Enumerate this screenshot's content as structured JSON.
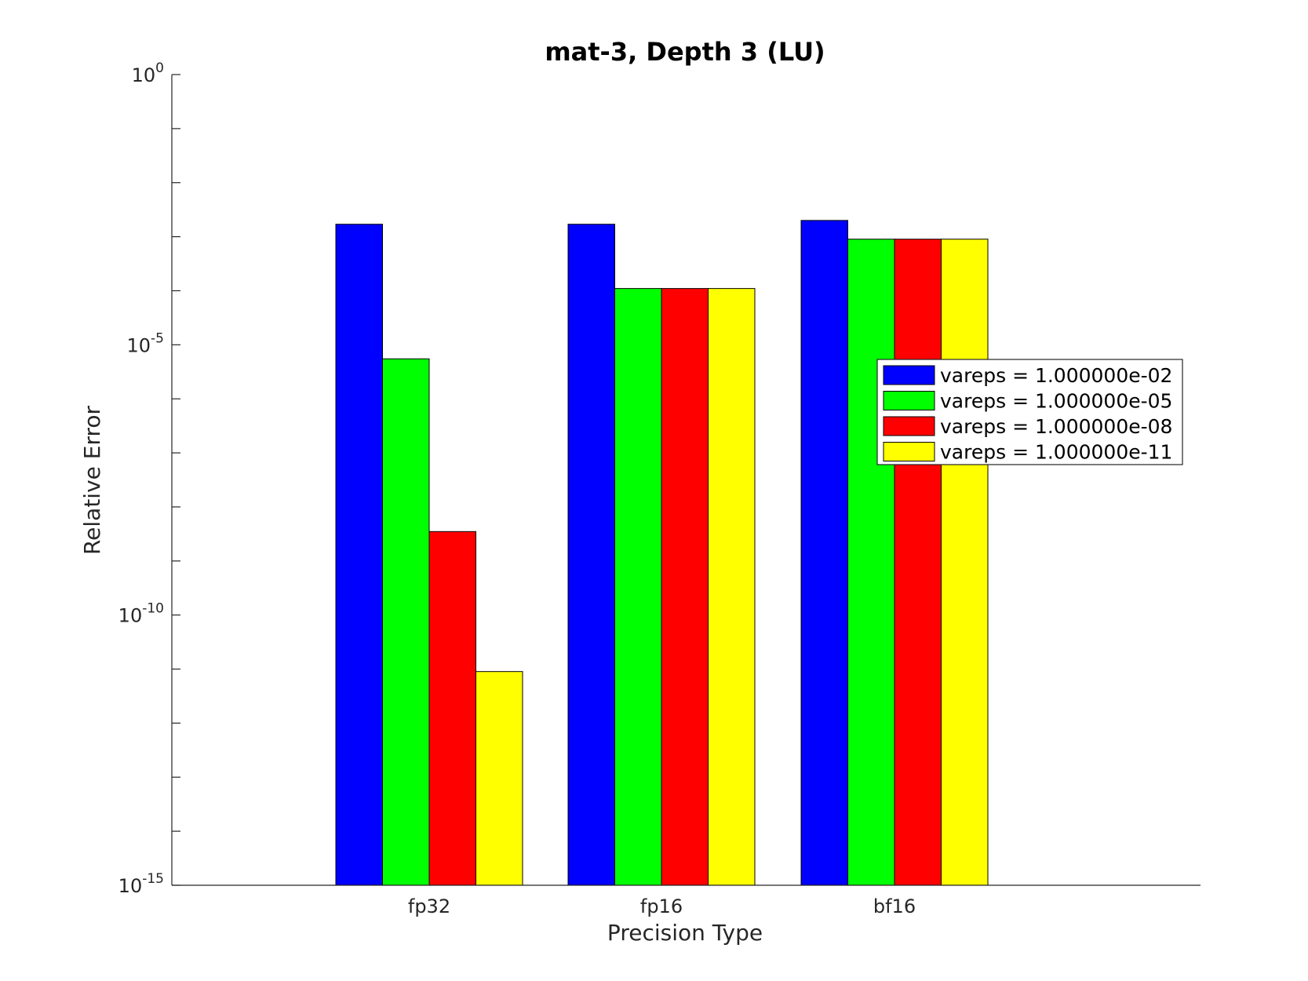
{
  "chart_data": {
    "type": "bar",
    "title": "mat-3, Depth 3 (LU)",
    "xlabel": "Precision Type",
    "ylabel": "Relative Error",
    "yscale": "log",
    "ylim": [
      1e-15,
      1
    ],
    "yticks": [
      {
        "value": 1,
        "base": "10",
        "exp": "0"
      },
      {
        "value": 1e-05,
        "base": "10",
        "exp": "-5"
      },
      {
        "value": 1e-10,
        "base": "10",
        "exp": "-10"
      },
      {
        "value": 1e-15,
        "base": "10",
        "exp": "-15"
      }
    ],
    "categories": [
      "fp32",
      "fp16",
      "bf16"
    ],
    "series": [
      {
        "name": "vareps = 1.000000e-02",
        "color": "#0000ff",
        "values": [
          0.0017,
          0.0017,
          0.002
        ]
      },
      {
        "name": "vareps = 1.000000e-05",
        "color": "#00ff00",
        "values": [
          5.5e-06,
          0.00011,
          0.0009
        ]
      },
      {
        "name": "vareps = 1.000000e-08",
        "color": "#ff0000",
        "values": [
          3.5e-09,
          0.00011,
          0.0009
        ]
      },
      {
        "name": "vareps = 1.000000e-11",
        "color": "#ffff00",
        "values": [
          9e-12,
          0.00011,
          0.0009
        ]
      }
    ],
    "grid": false,
    "legend_position": "right"
  }
}
